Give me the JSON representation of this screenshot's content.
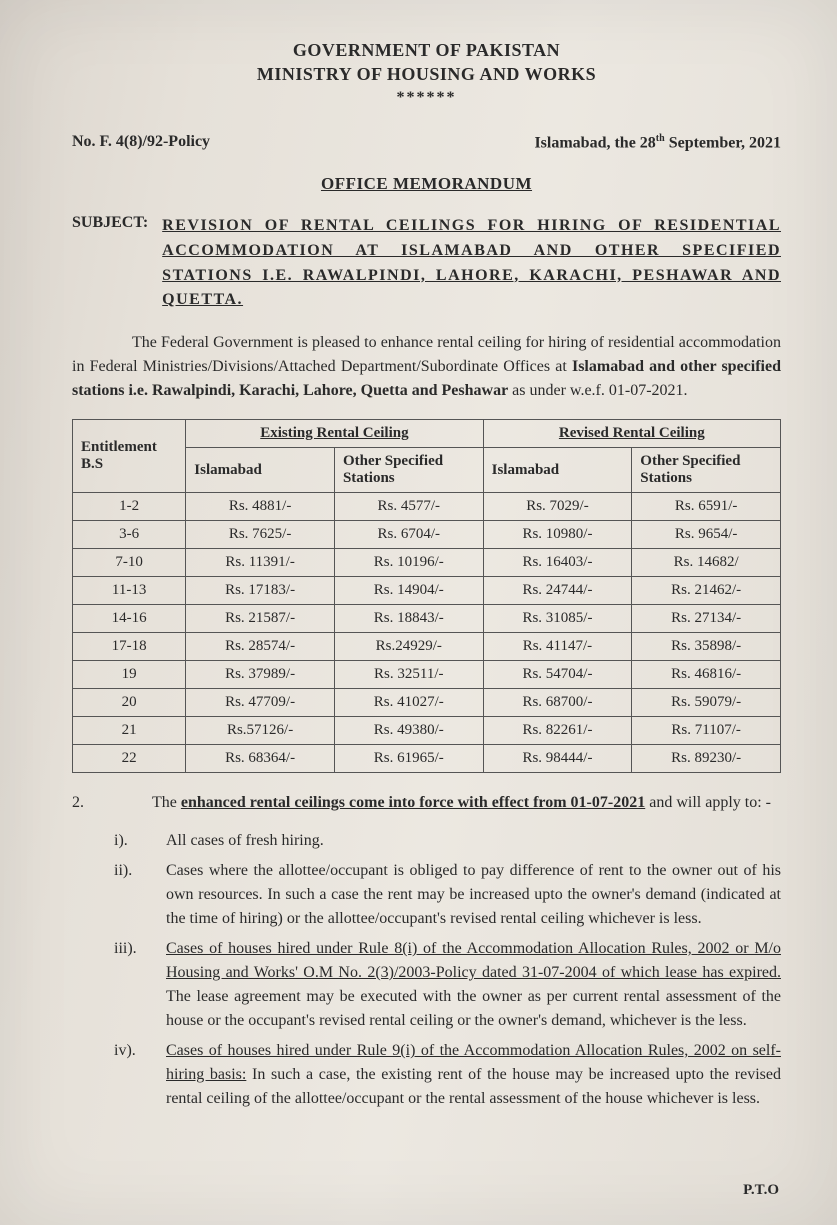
{
  "header": {
    "line1": "GOVERNMENT OF PAKISTAN",
    "line2": "MINISTRY OF HOUSING AND WORKS",
    "stars": "******"
  },
  "ref": {
    "number": "No. F. 4(8)/92-Policy",
    "date_prefix": "Islamabad, the 28",
    "date_ordinal": "th",
    "date_suffix": " September, 2021"
  },
  "memo_title": "OFFICE MEMORANDUM",
  "subject": {
    "label": "SUBJECT:",
    "text": "REVISION OF RENTAL CEILINGS FOR HIRING OF RESIDENTIAL ACCOMMODATION AT ISLAMABAD AND OTHER SPECIFIED STATIONS I.E. RAWALPINDI, LAHORE, KARACHI, PESHAWAR AND QUETTA."
  },
  "intro": {
    "pre": "The Federal Government is pleased to enhance rental ceiling for hiring of residential accommodation in Federal Ministries/Divisions/Attached Department/Subordinate Offices at ",
    "bold": "Islamabad and other specified stations i.e. Rawalpindi, Karachi, Lahore, Quetta and Peshawar",
    "post": " as under w.e.f. 01-07-2021."
  },
  "table": {
    "head": {
      "entitlement": "Entitlement B.S",
      "existing": "Existing Rental Ceiling",
      "revised": "Revised Rental Ceiling",
      "islamabad": "Islamabad",
      "other": "Other Specified Stations"
    },
    "rows": [
      {
        "bs": "1-2",
        "ei": "Rs. 4881/-",
        "eo": "Rs. 4577/-",
        "ri": "Rs. 7029/-",
        "ro": "Rs. 6591/-"
      },
      {
        "bs": "3-6",
        "ei": "Rs. 7625/-",
        "eo": "Rs. 6704/-",
        "ri": "Rs. 10980/-",
        "ro": "Rs. 9654/-"
      },
      {
        "bs": "7-10",
        "ei": "Rs. 11391/-",
        "eo": "Rs. 10196/-",
        "ri": "Rs. 16403/-",
        "ro": "Rs. 14682/"
      },
      {
        "bs": "11-13",
        "ei": "Rs. 17183/-",
        "eo": "Rs. 14904/-",
        "ri": "Rs. 24744/-",
        "ro": "Rs. 21462/-"
      },
      {
        "bs": "14-16",
        "ei": "Rs. 21587/-",
        "eo": "Rs. 18843/-",
        "ri": "Rs. 31085/-",
        "ro": "Rs. 27134/-"
      },
      {
        "bs": "17-18",
        "ei": "Rs. 28574/-",
        "eo": "Rs.24929/-",
        "ri": "Rs. 41147/-",
        "ro": "Rs. 35898/-"
      },
      {
        "bs": "19",
        "ei": "Rs. 37989/-",
        "eo": "Rs. 32511/-",
        "ri": "Rs. 54704/-",
        "ro": "Rs. 46816/-"
      },
      {
        "bs": "20",
        "ei": "Rs. 47709/-",
        "eo": "Rs. 41027/-",
        "ri": "Rs. 68700/-",
        "ro": "Rs. 59079/-"
      },
      {
        "bs": "21",
        "ei": "Rs.57126/-",
        "eo": "Rs. 49380/-",
        "ri": "Rs. 82261/-",
        "ro": "Rs. 71107/-"
      },
      {
        "bs": "22",
        "ei": "Rs. 68364/-",
        "eo": "Rs. 61965/-",
        "ri": "Rs. 98444/-",
        "ro": "Rs. 89230/-"
      }
    ]
  },
  "para2": {
    "num": "2.",
    "pre": "The ",
    "u": "enhanced rental ceilings come into force with effect from 01-07-2021",
    "post": " and will apply to: -"
  },
  "list": [
    {
      "marker": "i).",
      "plain": "All cases of fresh hiring."
    },
    {
      "marker": "ii).",
      "plain": "Cases where the allottee/occupant is obliged to pay difference of rent to the owner out of his own resources. In such a case the rent may be increased upto the owner's demand (indicated at the time of hiring) or the allottee/occupant's revised rental ceiling whichever is less."
    },
    {
      "marker": "iii).",
      "u": "Cases of houses hired under Rule 8(i) of the Accommodation Allocation Rules, 2002 or M/o Housing and Works' O.M No. 2(3)/2003-Policy dated 31-07-2004 of which lease has expired.",
      "plain2": " The lease agreement may be executed with the owner as per current rental assessment of the house or the occupant's revised rental ceiling or the owner's demand, whichever is the less."
    },
    {
      "marker": "iv).",
      "u": "Cases of houses hired under Rule 9(i) of the Accommodation Allocation Rules, 2002 on self-hiring basis:",
      "plain2": " In such a case, the existing rent of the house may be increased upto the revised rental ceiling of the allottee/occupant or the rental assessment of the house whichever is less."
    }
  ],
  "pto": "P.T.O"
}
